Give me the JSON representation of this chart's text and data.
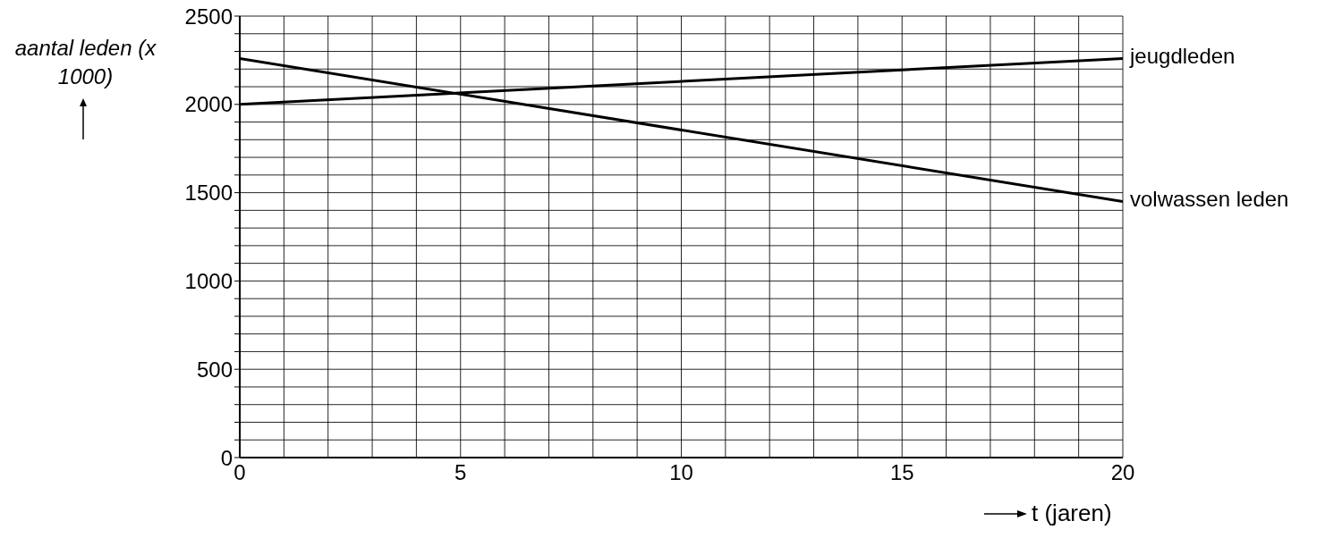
{
  "chart_data": {
    "type": "line",
    "ylabel": "aantal leden (x 1000)",
    "xlabel": "t (jaren)",
    "x": [
      0,
      20
    ],
    "series": [
      {
        "name": "jeugdleden",
        "color": "#000000",
        "values": [
          2000,
          2260
        ]
      },
      {
        "name": "volwassen leden",
        "color": "#000000",
        "values": [
          2260,
          1450
        ]
      }
    ],
    "xlim": [
      0,
      20
    ],
    "ylim": [
      0,
      2500
    ],
    "xticks": [
      0,
      {
        "value": 1,
        "label": null
      },
      {
        "value": 2,
        "label": null
      },
      {
        "value": 3,
        "label": null
      },
      {
        "value": 4,
        "label": null
      },
      5,
      {
        "value": 6,
        "label": null
      },
      {
        "value": 7,
        "label": null
      },
      {
        "value": 8,
        "label": null
      },
      {
        "value": 9,
        "label": null
      },
      10,
      {
        "value": 11,
        "label": null
      },
      {
        "value": 12,
        "label": null
      },
      {
        "value": 13,
        "label": null
      },
      {
        "value": 14,
        "label": null
      },
      15,
      {
        "value": 16,
        "label": null
      },
      {
        "value": 17,
        "label": null
      },
      {
        "value": 18,
        "label": null
      },
      {
        "value": 19,
        "label": null
      },
      20
    ],
    "yticks": [
      0,
      {
        "value": 100,
        "label": null
      },
      {
        "value": 200,
        "label": null
      },
      {
        "value": 300,
        "label": null
      },
      {
        "value": 400,
        "label": null
      },
      500,
      {
        "value": 600,
        "label": null
      },
      {
        "value": 700,
        "label": null
      },
      {
        "value": 800,
        "label": null
      },
      {
        "value": 900,
        "label": null
      },
      1000,
      {
        "value": 1100,
        "label": null
      },
      {
        "value": 1200,
        "label": null
      },
      {
        "value": 1300,
        "label": null
      },
      {
        "value": 1400,
        "label": null
      },
      1500,
      {
        "value": 1600,
        "label": null
      },
      {
        "value": 1700,
        "label": null
      },
      {
        "value": 1800,
        "label": null
      },
      {
        "value": 1900,
        "label": null
      },
      2000,
      {
        "value": 2100,
        "label": null
      },
      {
        "value": 2200,
        "label": null
      },
      {
        "value": 2300,
        "label": null
      },
      {
        "value": 2400,
        "label": null
      },
      2500
    ],
    "grid": true,
    "marker": "none",
    "line_style": "solid"
  }
}
